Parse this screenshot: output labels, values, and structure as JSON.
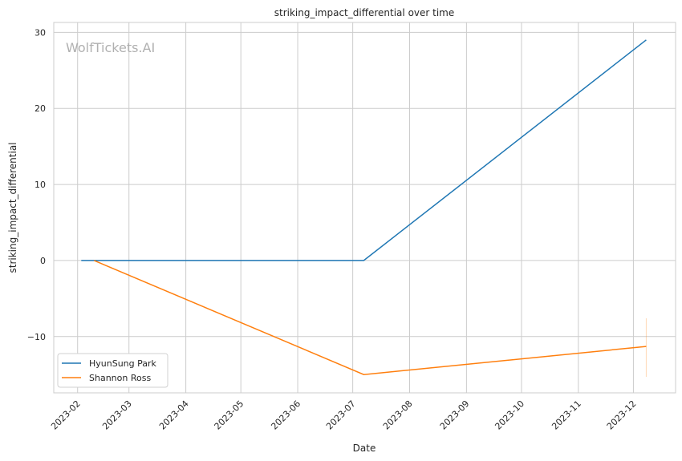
{
  "chart_data": {
    "type": "line",
    "title": "striking_impact_differential over time",
    "xlabel": "Date",
    "ylabel": "striking_impact_differential",
    "watermark": "WolfTickets.AI",
    "xlim": [
      "2023-01-19",
      "2023-12-24"
    ],
    "ylim": [
      -17.4,
      31.3
    ],
    "x_ticks": [
      "2023-02",
      "2023-03",
      "2023-04",
      "2023-05",
      "2023-06",
      "2023-07",
      "2023-08",
      "2023-09",
      "2023-10",
      "2023-11",
      "2023-12"
    ],
    "y_ticks": [
      -10,
      0,
      10,
      20,
      30
    ],
    "y_tick_labels": [
      "−10",
      "0",
      "10",
      "20",
      "30"
    ],
    "grid": true,
    "legend_position": "lower-left",
    "series": [
      {
        "name": "HyunSung Park",
        "color": "#1f77b4",
        "x": [
          "2023-02-03",
          "2023-07-07",
          "2023-12-08"
        ],
        "y": [
          0,
          0,
          29
        ]
      },
      {
        "name": "Shannon Ross",
        "color": "#ff7f0e",
        "x": [
          "2023-02-10",
          "2023-07-07",
          "2023-12-08"
        ],
        "y": [
          0,
          -15,
          -11.3
        ],
        "error_band_at_last": [
          -15.3,
          -7.6
        ]
      }
    ]
  }
}
